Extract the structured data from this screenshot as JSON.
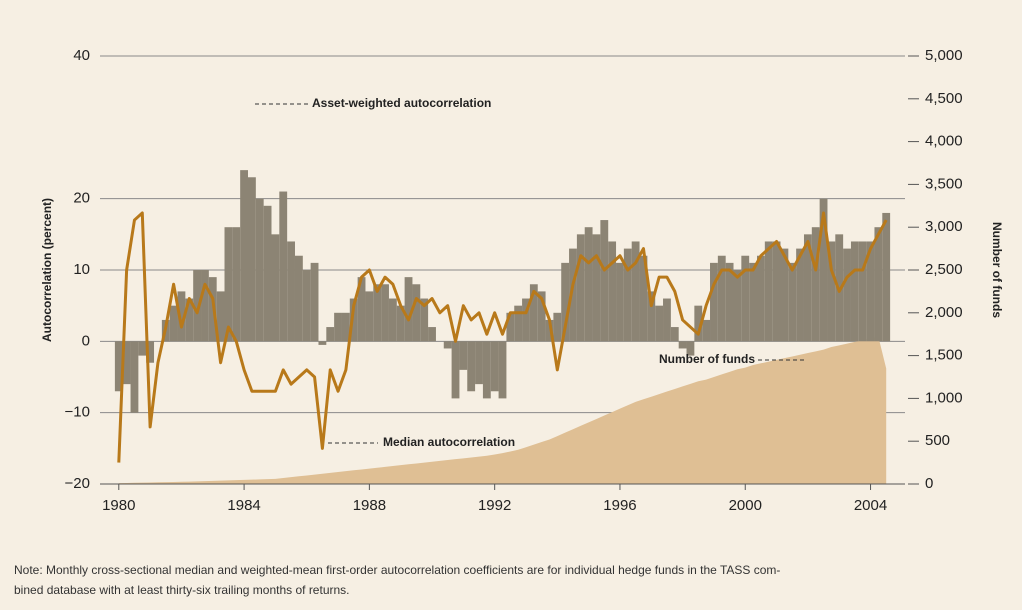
{
  "chart_data": {
    "type": "combo",
    "y_label": "Autocorrelation (percent)",
    "y2_label": "Number of funds",
    "annotations": [
      "Asset-weighted autocorrelation",
      "Median autocorrelation",
      "Number of funds"
    ],
    "note": [
      "Note: Monthly cross-sectional median and weighted-mean first-order autocorrelation coefficients are for individual hedge funds in the TASS com-",
      "bined database with at least thirty-six trailing months of returns."
    ],
    "xlim": [
      1979.4,
      2005.1
    ],
    "xticks": [
      1980,
      1984,
      1988,
      1992,
      1996,
      2000,
      2004
    ],
    "ylim": [
      -20,
      40
    ],
    "yticks": [
      40,
      20,
      10,
      0,
      {
        "value": -10,
        "label": "−10"
      },
      {
        "value": -20,
        "label": "−20"
      }
    ],
    "y2lim": [
      0,
      5000
    ],
    "y2ticks": [
      {
        "value": 5000,
        "label": "5,000"
      },
      {
        "value": 4500,
        "label": "4,500"
      },
      {
        "value": 4000,
        "label": "4,000"
      },
      {
        "value": 3500,
        "label": "3,500"
      },
      {
        "value": 3000,
        "label": "3,000"
      },
      {
        "value": 2500,
        "label": "2,500"
      },
      {
        "value": 2000,
        "label": "2,000"
      },
      {
        "value": 1500,
        "label": "1,500"
      },
      {
        "value": 1000,
        "label": "1,000"
      },
      500,
      0
    ],
    "grid": true,
    "x": [
      1980,
      1980.25,
      1980.5,
      1980.75,
      1981,
      1981.25,
      1981.5,
      1981.75,
      1982,
      1982.25,
      1982.5,
      1982.75,
      1983,
      1983.25,
      1983.5,
      1983.75,
      1984,
      1984.25,
      1984.5,
      1984.75,
      1985,
      1985.25,
      1985.5,
      1985.75,
      1986,
      1986.25,
      1986.5,
      1986.75,
      1987,
      1987.25,
      1987.5,
      1987.75,
      1988,
      1988.25,
      1988.5,
      1988.75,
      1989,
      1989.25,
      1989.5,
      1989.75,
      1990,
      1990.25,
      1990.5,
      1990.75,
      1991,
      1991.25,
      1991.5,
      1991.75,
      1992,
      1992.25,
      1992.5,
      1992.75,
      1993,
      1993.25,
      1993.5,
      1993.75,
      1994,
      1994.25,
      1994.5,
      1994.75,
      1995,
      1995.25,
      1995.5,
      1995.75,
      1996,
      1996.25,
      1996.5,
      1996.75,
      1997,
      1997.25,
      1997.5,
      1997.75,
      1998,
      1998.25,
      1998.5,
      1998.75,
      1999,
      1999.25,
      1999.5,
      1999.75,
      2000,
      2000.25,
      2000.5,
      2000.75,
      2001,
      2001.25,
      2001.5,
      2001.75,
      2002,
      2002.25,
      2002.5,
      2002.75,
      2003,
      2003.25,
      2003.5,
      2003.75,
      2004,
      2004.25,
      2004.5
    ],
    "series": [
      {
        "name": "Number of funds",
        "kind": "area",
        "axis": "y2",
        "color": "#dfbf94",
        "values": [
          10,
          12,
          14,
          16,
          18,
          20,
          22,
          24,
          26,
          28,
          30,
          33,
          36,
          39,
          42,
          45,
          48,
          51,
          54,
          57,
          60,
          70,
          80,
          90,
          100,
          110,
          120,
          130,
          140,
          150,
          160,
          170,
          180,
          190,
          200,
          210,
          220,
          230,
          240,
          250,
          260,
          270,
          280,
          290,
          300,
          310,
          320,
          330,
          345,
          360,
          380,
          400,
          430,
          460,
          490,
          520,
          560,
          600,
          640,
          680,
          720,
          760,
          800,
          840,
          880,
          920,
          960,
          990,
          1020,
          1050,
          1080,
          1110,
          1140,
          1170,
          1200,
          1220,
          1250,
          1280,
          1310,
          1340,
          1360,
          1390,
          1410,
          1430,
          1450,
          1470,
          1490,
          1510,
          1530,
          1550,
          1570,
          1600,
          1620,
          1640,
          1660,
          1680,
          1700,
          1720,
          1350
        ]
      },
      {
        "name": "Asset-weighted autocorrelation",
        "kind": "bar",
        "color": "#8c8474",
        "values": [
          -7,
          -6,
          -10,
          -2,
          -3,
          0,
          3,
          5,
          7,
          6,
          10,
          10,
          9,
          7,
          16,
          16,
          24,
          23,
          20,
          19,
          15,
          21,
          14,
          12,
          10,
          11,
          -0.5,
          2,
          4,
          4,
          6,
          9,
          7,
          8,
          8,
          6,
          5,
          9,
          8,
          6,
          2,
          0,
          -1,
          -8,
          -4,
          -7,
          -6,
          -8,
          -7,
          -8,
          4,
          5,
          6,
          8,
          7,
          3,
          4,
          11,
          13,
          15,
          16,
          15,
          17,
          14,
          11,
          13,
          14,
          12,
          7,
          5,
          6,
          2,
          -1,
          -2,
          5,
          3,
          11,
          12,
          11,
          10,
          12,
          11,
          12,
          14,
          14,
          13,
          11,
          13,
          15,
          16,
          20,
          14,
          15,
          13,
          14,
          14,
          14,
          16,
          18
        ]
      },
      {
        "name": "Median autocorrelation",
        "kind": "line",
        "color": "#b8791a",
        "values": [
          -17,
          10,
          17,
          18,
          -12,
          -3,
          2,
          8,
          2,
          6,
          4,
          8,
          6,
          -3,
          2,
          0,
          -4,
          -7,
          -7,
          -7,
          -7,
          -4,
          -6,
          -5,
          -4,
          -5,
          -15,
          -4,
          -7,
          -4,
          5,
          9,
          10,
          7,
          9,
          8,
          5,
          3,
          6,
          5,
          6,
          4,
          5,
          0,
          5,
          3,
          4,
          1,
          4,
          1,
          4,
          4,
          4,
          7,
          6,
          3,
          -4,
          2,
          8,
          12,
          11,
          12,
          10,
          11,
          12,
          10,
          11,
          13,
          5,
          9,
          9,
          7,
          3,
          2,
          1,
          5,
          8,
          10,
          10,
          9,
          10,
          10,
          12,
          13,
          14,
          12,
          10,
          12,
          14,
          10,
          18,
          10,
          7,
          9,
          10,
          10,
          13,
          15,
          17
        ]
      }
    ]
  }
}
